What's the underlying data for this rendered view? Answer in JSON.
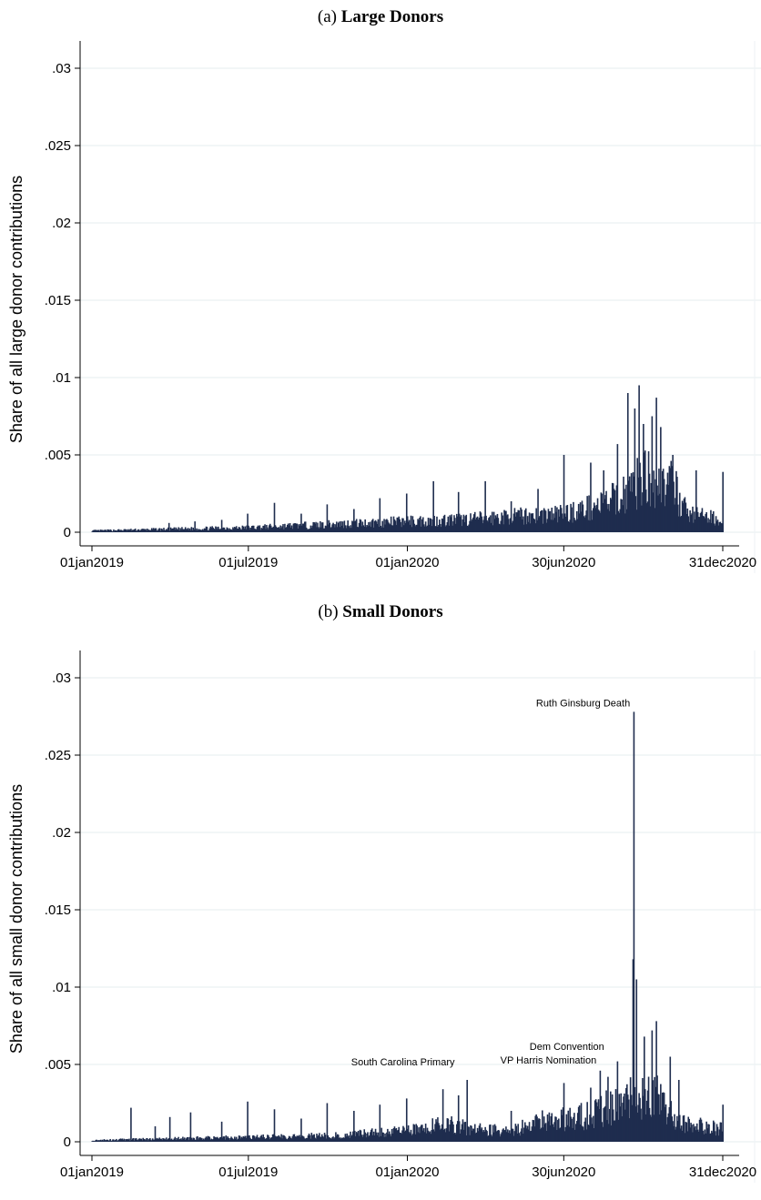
{
  "chart_data": [
    {
      "type": "bar",
      "panel_label": "(a)",
      "title": "Large Donors",
      "ylabel": "Share of all large donor contributions",
      "xlabel": "",
      "ylim": [
        0,
        0.03
      ],
      "yticks": [
        0,
        0.005,
        0.01,
        0.015,
        0.02,
        0.025,
        0.03
      ],
      "ytick_labels": [
        "0",
        ".005",
        ".01",
        ".015",
        ".02",
        ".025",
        ".03"
      ],
      "xlim": [
        "2019-01-01",
        "2020-12-31"
      ],
      "xticks": [
        "2019-01-01",
        "2019-07-01",
        "2020-01-01",
        "2020-06-30",
        "2020-12-31"
      ],
      "xtick_labels": [
        "01jan2019",
        "01jul2019",
        "01jan2020",
        "30jun2020",
        "31dec2020"
      ],
      "grid": true,
      "bar_color": "#1f2d4e",
      "baseline": [
        [
          "2019-01-01",
          0.0001
        ],
        [
          "2019-04-01",
          0.0002
        ],
        [
          "2019-07-01",
          0.0003
        ],
        [
          "2019-10-01",
          0.0005
        ],
        [
          "2020-01-01",
          0.0007
        ],
        [
          "2020-03-01",
          0.0008
        ],
        [
          "2020-06-30",
          0.0012
        ],
        [
          "2020-08-01",
          0.0016
        ],
        [
          "2020-09-01",
          0.0022
        ],
        [
          "2020-10-01",
          0.0035
        ],
        [
          "2020-11-03",
          0.003
        ],
        [
          "2020-11-20",
          0.0012
        ],
        [
          "2020-12-31",
          0.0008
        ]
      ],
      "spikes": [
        [
          "2019-03-31",
          0.0006
        ],
        [
          "2019-04-30",
          0.0007
        ],
        [
          "2019-05-31",
          0.0008
        ],
        [
          "2019-06-30",
          0.0012
        ],
        [
          "2019-07-31",
          0.0019
        ],
        [
          "2019-08-31",
          0.0012
        ],
        [
          "2019-09-30",
          0.0018
        ],
        [
          "2019-10-31",
          0.0015
        ],
        [
          "2019-11-30",
          0.0022
        ],
        [
          "2019-12-31",
          0.0025
        ],
        [
          "2020-01-31",
          0.0033
        ],
        [
          "2020-02-29",
          0.0026
        ],
        [
          "2020-03-31",
          0.0033
        ],
        [
          "2020-04-30",
          0.002
        ],
        [
          "2020-05-31",
          0.0028
        ],
        [
          "2020-06-30",
          0.005
        ],
        [
          "2020-07-31",
          0.0045
        ],
        [
          "2020-08-15",
          0.004
        ],
        [
          "2020-08-31",
          0.0057
        ],
        [
          "2020-09-12",
          0.009
        ],
        [
          "2020-09-20",
          0.008
        ],
        [
          "2020-09-25",
          0.0095
        ],
        [
          "2020-09-30",
          0.007
        ],
        [
          "2020-10-10",
          0.0075
        ],
        [
          "2020-10-15",
          0.0087
        ],
        [
          "2020-10-20",
          0.0068
        ],
        [
          "2020-11-03",
          0.005
        ],
        [
          "2020-11-30",
          0.004
        ],
        [
          "2020-12-31",
          0.0039
        ]
      ],
      "annotations": []
    },
    {
      "type": "bar",
      "panel_label": "(b)",
      "title": "Small Donors",
      "ylabel": "Share of all small donor contributions",
      "xlabel": "",
      "ylim": [
        0,
        0.03
      ],
      "yticks": [
        0,
        0.005,
        0.01,
        0.015,
        0.02,
        0.025,
        0.03
      ],
      "ytick_labels": [
        "0",
        ".005",
        ".01",
        ".015",
        ".02",
        ".025",
        ".03"
      ],
      "xlim": [
        "2019-01-01",
        "2020-12-31"
      ],
      "xticks": [
        "2019-01-01",
        "2019-07-01",
        "2020-01-01",
        "2020-06-30",
        "2020-12-31"
      ],
      "xtick_labels": [
        "01jan2019",
        "01jul2019",
        "01jan2020",
        "30jun2020",
        "31dec2020"
      ],
      "grid": true,
      "bar_color": "#1f2d4e",
      "baseline": [
        [
          "2019-01-01",
          0.0001
        ],
        [
          "2019-04-01",
          0.0002
        ],
        [
          "2019-07-01",
          0.0003
        ],
        [
          "2019-10-01",
          0.0004
        ],
        [
          "2020-01-01",
          0.0007
        ],
        [
          "2020-02-15",
          0.0012
        ],
        [
          "2020-03-15",
          0.0008
        ],
        [
          "2020-05-01",
          0.0007
        ],
        [
          "2020-06-01",
          0.0013
        ],
        [
          "2020-08-01",
          0.0017
        ],
        [
          "2020-09-19",
          0.003
        ],
        [
          "2020-10-15",
          0.003
        ],
        [
          "2020-11-10",
          0.0012
        ],
        [
          "2020-12-31",
          0.0008
        ]
      ],
      "spikes": [
        [
          "2019-02-15",
          0.0022
        ],
        [
          "2019-03-15",
          0.001
        ],
        [
          "2019-04-01",
          0.0016
        ],
        [
          "2019-04-25",
          0.0019
        ],
        [
          "2019-05-31",
          0.0013
        ],
        [
          "2019-06-30",
          0.0026
        ],
        [
          "2019-07-31",
          0.0021
        ],
        [
          "2019-08-31",
          0.0015
        ],
        [
          "2019-09-30",
          0.0025
        ],
        [
          "2019-10-31",
          0.002
        ],
        [
          "2019-11-30",
          0.0024
        ],
        [
          "2019-12-31",
          0.0028
        ],
        [
          "2020-02-11",
          0.0034
        ],
        [
          "2020-02-29",
          0.003
        ],
        [
          "2020-03-10",
          0.004
        ],
        [
          "2020-04-30",
          0.002
        ],
        [
          "2020-06-30",
          0.0038
        ],
        [
          "2020-07-31",
          0.0035
        ],
        [
          "2020-08-11",
          0.0046
        ],
        [
          "2020-08-20",
          0.0042
        ],
        [
          "2020-08-31",
          0.0052
        ],
        [
          "2020-09-18",
          0.0118
        ],
        [
          "2020-09-19",
          0.0278
        ],
        [
          "2020-09-22",
          0.0105
        ],
        [
          "2020-10-01",
          0.0068
        ],
        [
          "2020-10-10",
          0.0072
        ],
        [
          "2020-10-15",
          0.0078
        ],
        [
          "2020-10-31",
          0.0055
        ],
        [
          "2020-11-10",
          0.004
        ],
        [
          "2020-12-31",
          0.0024
        ]
      ],
      "annotations": [
        {
          "text": "Ruth Ginsburg Death",
          "x": "2020-09-19",
          "y": 0.0278
        },
        {
          "text": "South Carolina Primary",
          "x": "2020-02-29",
          "y": 0.0046
        },
        {
          "text": "VP Harris Nomination",
          "x": "2020-08-11",
          "y": 0.0047
        },
        {
          "text": "Dem Convention",
          "x": "2020-08-20",
          "y": 0.0056
        }
      ]
    }
  ]
}
